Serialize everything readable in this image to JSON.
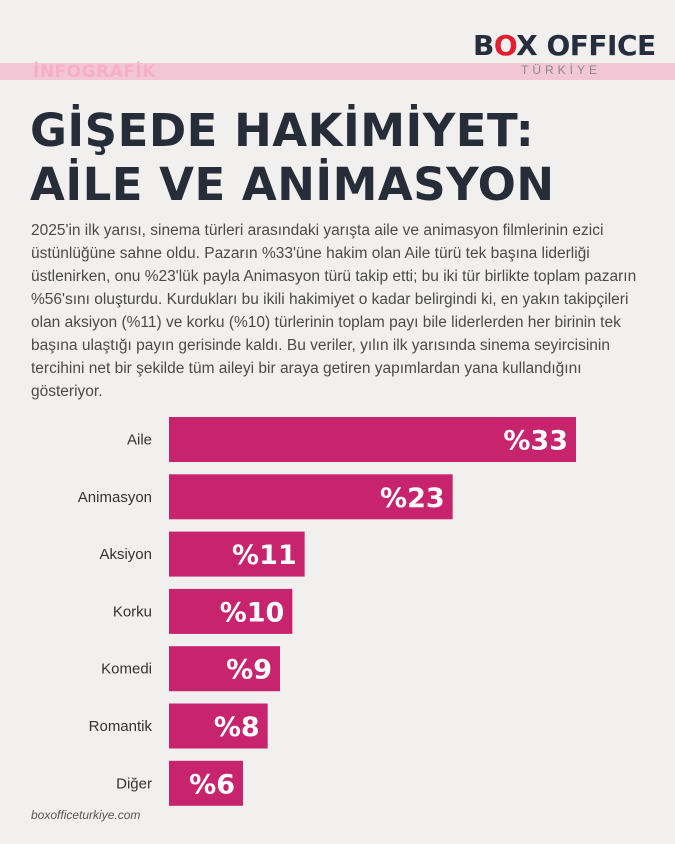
{
  "header": {
    "tag": "İNFOGRAFİK",
    "logo_b": "B",
    "logo_o": "O",
    "logo_rest": "X OFFICE",
    "logo_sub": "TÜRKİYE"
  },
  "title_lines": [
    "GİŞEDE HAKİMİYET:",
    "AİLE VE ANİMASYON"
  ],
  "description": "2025'in ilk yarısı, sinema türleri arasındaki yarışta aile ve animasyon filmlerinin ezici üstünlüğüne sahne oldu. Pazarın %33'üne hakim olan Aile türü tek başına liderliği üstlenirken, onu %23'lük payla Animasyon türü takip etti; bu iki tür birlikte toplam pazarın %56'sını oluşturdu. Kurdukları bu ikili hakimiyet o kadar belirgindi ki, en yakın takipçileri olan aksiyon (%11) ve korku (%10) türlerinin toplam payı bile liderlerden her birinin tek başına ulaştığı payın gerisinde kaldı. Bu veriler, yılın ilk yarısında sinema seyircisinin tercihini net bir şekilde tüm aileyi bir araya getiren yapımlardan yana kullandığını gösteriyor.",
  "chart_data": {
    "type": "bar",
    "orientation": "horizontal",
    "categories": [
      "Aile",
      "Animasyon",
      "Aksiyon",
      "Korku",
      "Komedi",
      "Romantik",
      "Diğer"
    ],
    "values": [
      33,
      23,
      11,
      10,
      9,
      8,
      6
    ],
    "value_labels": [
      "%33",
      "%23",
      "%11",
      "%10",
      "%9",
      "%8",
      "%6"
    ],
    "bar_color": "#c8246e",
    "xlim": [
      0,
      33
    ]
  },
  "footer": "boxofficeturkiye.com"
}
